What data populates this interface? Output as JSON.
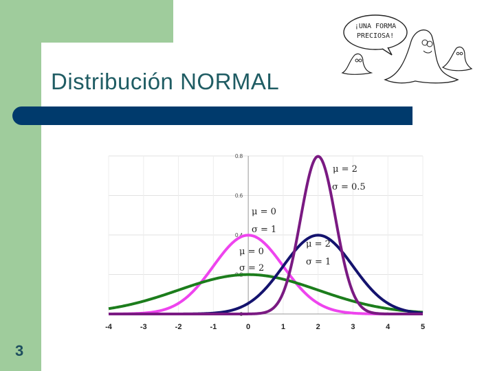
{
  "slide": {
    "title": "Distribución NORMAL",
    "number": "3",
    "cartoon_text_line1": "¡UNA FORMA",
    "cartoon_text_line2": "PRECIOSA!"
  },
  "colors": {
    "sidebar_green": "#9fcc9c",
    "title_bar": "#003a6c",
    "title_text": "#1f5c63"
  },
  "chart_data": {
    "type": "line",
    "title": "",
    "xlabel": "",
    "ylabel": "",
    "xlim": [
      -4,
      5
    ],
    "ylim": [
      0,
      0.8
    ],
    "x_ticks": [
      "-4",
      "-3",
      "-2",
      "-1",
      "0",
      "1",
      "2",
      "3",
      "4",
      "5"
    ],
    "y_ticks": [
      "0",
      "0.2",
      "0.4",
      "0.6",
      "0.8"
    ],
    "grid": true,
    "series": [
      {
        "name": "μ=0, σ=1",
        "mu": 0,
        "sigma": 1,
        "color": "#ee44ee",
        "label_mu": "μ = 0",
        "label_sigma": "σ = 1"
      },
      {
        "name": "μ=0, σ=2",
        "mu": 0,
        "sigma": 2,
        "color": "#1c7d1c",
        "label_mu": "μ = 0",
        "label_sigma": "σ = 2"
      },
      {
        "name": "μ=2, σ=1",
        "mu": 2,
        "sigma": 1,
        "color": "#14136e",
        "label_mu": "μ = 2",
        "label_sigma": "σ = 1"
      },
      {
        "name": "μ=2, σ=0.5",
        "mu": 2,
        "sigma": 0.5,
        "color": "#7a1a82",
        "label_mu": "μ = 2",
        "label_sigma": "σ = 0.5"
      }
    ]
  }
}
